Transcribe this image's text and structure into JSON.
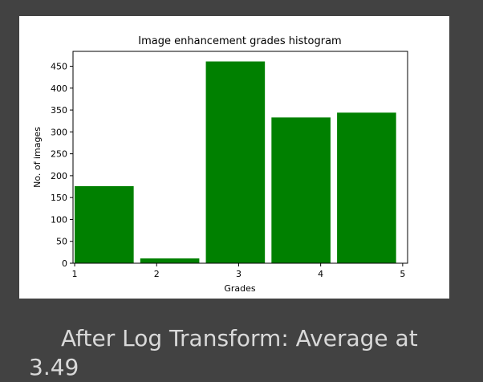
{
  "chart_data": {
    "type": "bar",
    "title": "Image enhancement grades histogram",
    "xlabel": "Grades",
    "ylabel": "No. of images",
    "x_ticks": [
      1,
      2,
      3,
      4,
      5
    ],
    "y_ticks": [
      0,
      50,
      100,
      150,
      200,
      250,
      300,
      350,
      400,
      450
    ],
    "xlim": [
      0.98,
      5.06
    ],
    "ylim": [
      0,
      484
    ],
    "bin_edges": [
      1.0,
      1.8,
      2.6,
      3.4,
      4.2,
      5.0
    ],
    "bar_width_fraction": 0.9,
    "values": [
      176,
      11,
      461,
      333,
      344
    ],
    "bar_color": "#008000",
    "grid": false
  },
  "caption": {
    "text": "After Log Transform: Average at 3.49"
  }
}
